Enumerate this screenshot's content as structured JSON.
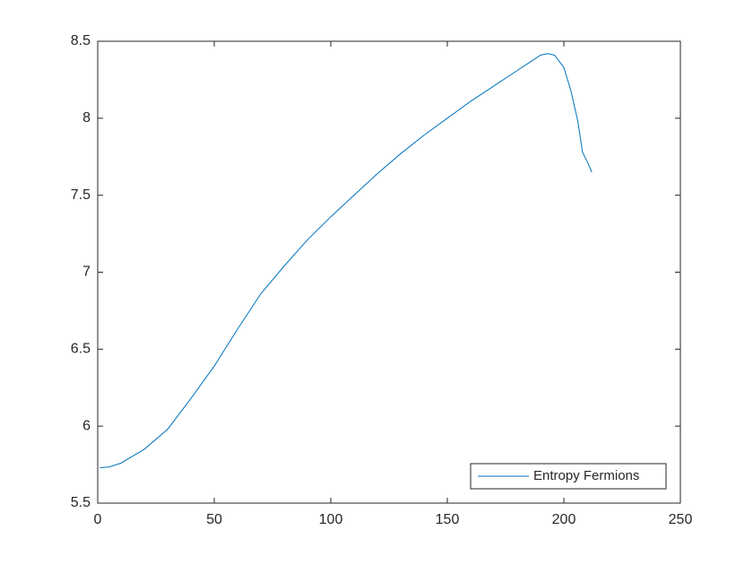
{
  "chart_data": {
    "type": "line",
    "x": [
      1,
      5,
      10,
      20,
      30,
      40,
      50,
      60,
      70,
      80,
      90,
      100,
      110,
      120,
      130,
      140,
      150,
      160,
      170,
      180,
      185,
      190,
      193,
      196,
      200,
      203,
      206,
      208,
      210,
      212
    ],
    "series": [
      {
        "name": "Entropy Fermions",
        "color": "#0072bd",
        "values": [
          5.73,
          5.735,
          5.76,
          5.85,
          5.98,
          6.18,
          6.39,
          6.63,
          6.86,
          7.04,
          7.21,
          7.36,
          7.5,
          7.64,
          7.77,
          7.89,
          8.0,
          8.11,
          8.21,
          8.31,
          8.36,
          8.41,
          8.42,
          8.41,
          8.33,
          8.18,
          7.98,
          7.78,
          7.72,
          7.65
        ]
      }
    ],
    "xlim": [
      0,
      250
    ],
    "xticks": [
      0,
      50,
      100,
      150,
      200,
      250
    ],
    "ylim": [
      5.5,
      8.5
    ],
    "yticks": [
      5.5,
      6,
      6.5,
      7,
      7.5,
      8,
      8.5
    ],
    "grid": false,
    "legend": "lower right"
  }
}
